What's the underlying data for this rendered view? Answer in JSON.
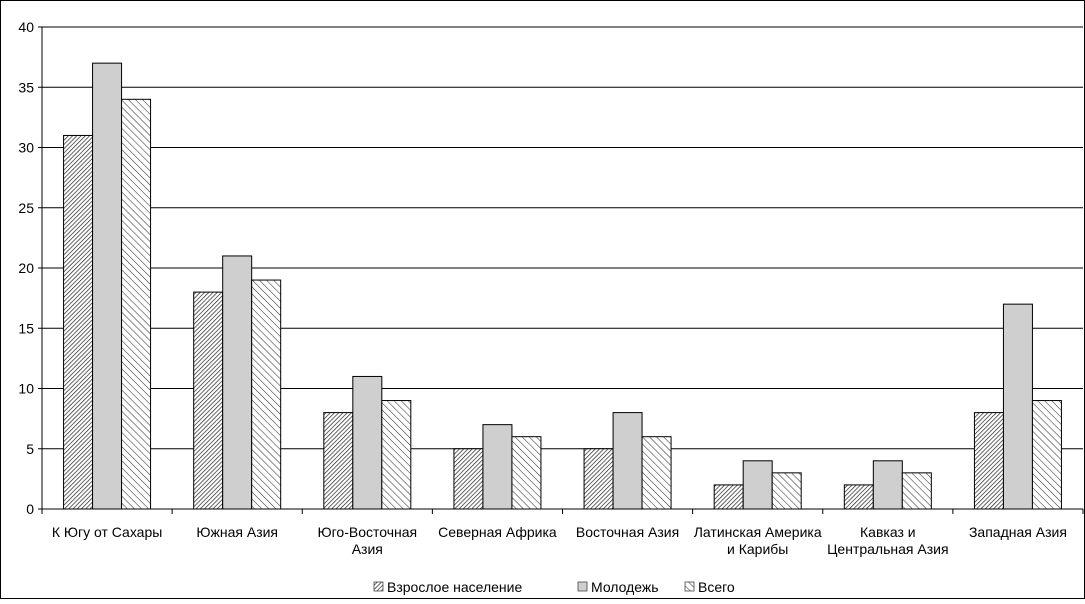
{
  "chart_data": {
    "type": "bar",
    "title": "",
    "xlabel": "",
    "ylabel": "",
    "ylim": [
      0,
      40
    ],
    "yticks": [
      0,
      5,
      10,
      15,
      20,
      25,
      30,
      35,
      40
    ],
    "grid": true,
    "legend_position": "bottom",
    "categories": [
      [
        "К Югу от Сахары"
      ],
      [
        "Южная Азия"
      ],
      [
        "Юго-Восточная",
        "Азия"
      ],
      [
        "Северная Африка"
      ],
      [
        "Восточная Азия"
      ],
      [
        "Латинская Америка",
        "и Карибы"
      ],
      [
        "Кавказ и",
        "Центральная Азия"
      ],
      [
        "Западная Азия"
      ]
    ],
    "series": [
      {
        "name": "Взрослое население",
        "values": [
          31,
          18,
          8,
          5,
          5,
          2,
          2,
          8
        ],
        "pattern": "dense-hatch"
      },
      {
        "name": "Молодежь",
        "values": [
          37,
          21,
          11,
          7,
          8,
          4,
          4,
          17
        ],
        "pattern": "solid-gray",
        "color": "#cfcfcf"
      },
      {
        "name": "Всего",
        "values": [
          34,
          19,
          9,
          6,
          6,
          3,
          3,
          9
        ],
        "pattern": "sparse-hatch"
      }
    ]
  }
}
